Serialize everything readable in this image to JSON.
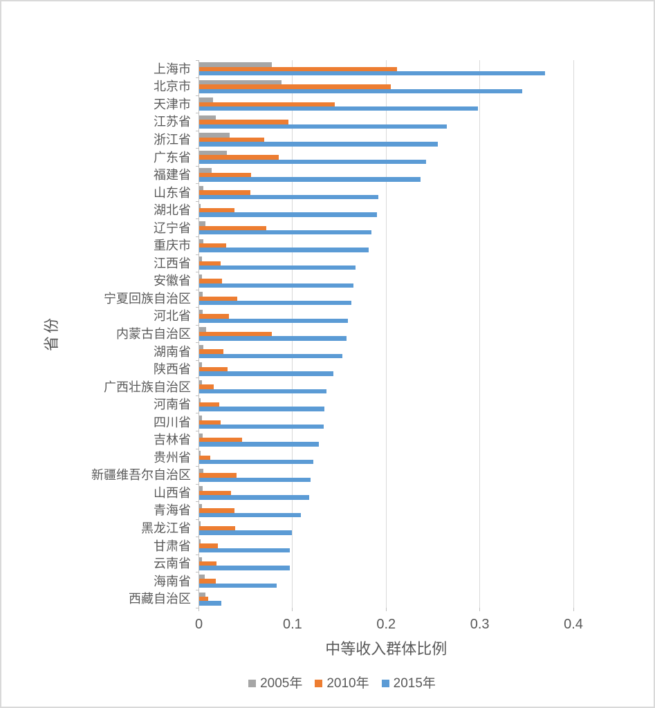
{
  "chart_data": {
    "type": "bar",
    "orientation": "horizontal",
    "title": "",
    "xlabel": "中等收入群体比例",
    "ylabel": "省份",
    "xlim": [
      0,
      0.4
    ],
    "x_ticks": [
      0,
      0.1,
      0.2,
      0.3,
      0.4
    ],
    "x_tick_labels": [
      "0",
      "0.1",
      "0.2",
      "0.3",
      "0.4"
    ],
    "grid": true,
    "legend_position": "bottom",
    "categories": [
      "上海市",
      "北京市",
      "天津市",
      "江苏省",
      "浙江省",
      "广东省",
      "福建省",
      "山东省",
      "湖北省",
      "辽宁省",
      "重庆市",
      "江西省",
      "安徽省",
      "宁夏回族自治区",
      "河北省",
      "内蒙古自治区",
      "湖南省",
      "陕西省",
      "广西壮族自治区",
      "河南省",
      "四川省",
      "吉林省",
      "贵州省",
      "新疆维吾尔自治区",
      "山西省",
      "青海省",
      "黑龙江省",
      "甘肃省",
      "云南省",
      "海南省",
      "西藏自治区"
    ],
    "series": [
      {
        "name": "2005年",
        "color": "#a6a6a6",
        "values": [
          0.078,
          0.088,
          0.015,
          0.018,
          0.033,
          0.03,
          0.014,
          0.005,
          0.002,
          0.007,
          0.005,
          0.003,
          0.003,
          0.004,
          0.004,
          0.008,
          0.005,
          0.003,
          0.003,
          0.002,
          0.003,
          0.004,
          0.002,
          0.005,
          0.004,
          0.003,
          0.002,
          0.002,
          0.003,
          0.006,
          0.007
        ]
      },
      {
        "name": "2010年",
        "color": "#ed7d31",
        "values": [
          0.212,
          0.205,
          0.145,
          0.096,
          0.07,
          0.085,
          0.056,
          0.055,
          0.038,
          0.072,
          0.029,
          0.023,
          0.025,
          0.041,
          0.032,
          0.078,
          0.026,
          0.031,
          0.016,
          0.022,
          0.023,
          0.046,
          0.012,
          0.04,
          0.034,
          0.038,
          0.039,
          0.02,
          0.019,
          0.018,
          0.01
        ]
      },
      {
        "name": "2015年",
        "color": "#5b9bd5",
        "values": [
          0.37,
          0.345,
          0.298,
          0.265,
          0.255,
          0.243,
          0.237,
          0.192,
          0.19,
          0.184,
          0.181,
          0.167,
          0.165,
          0.163,
          0.159,
          0.158,
          0.153,
          0.144,
          0.136,
          0.134,
          0.133,
          0.128,
          0.122,
          0.119,
          0.118,
          0.109,
          0.099,
          0.097,
          0.097,
          0.083,
          0.024
        ]
      }
    ]
  }
}
